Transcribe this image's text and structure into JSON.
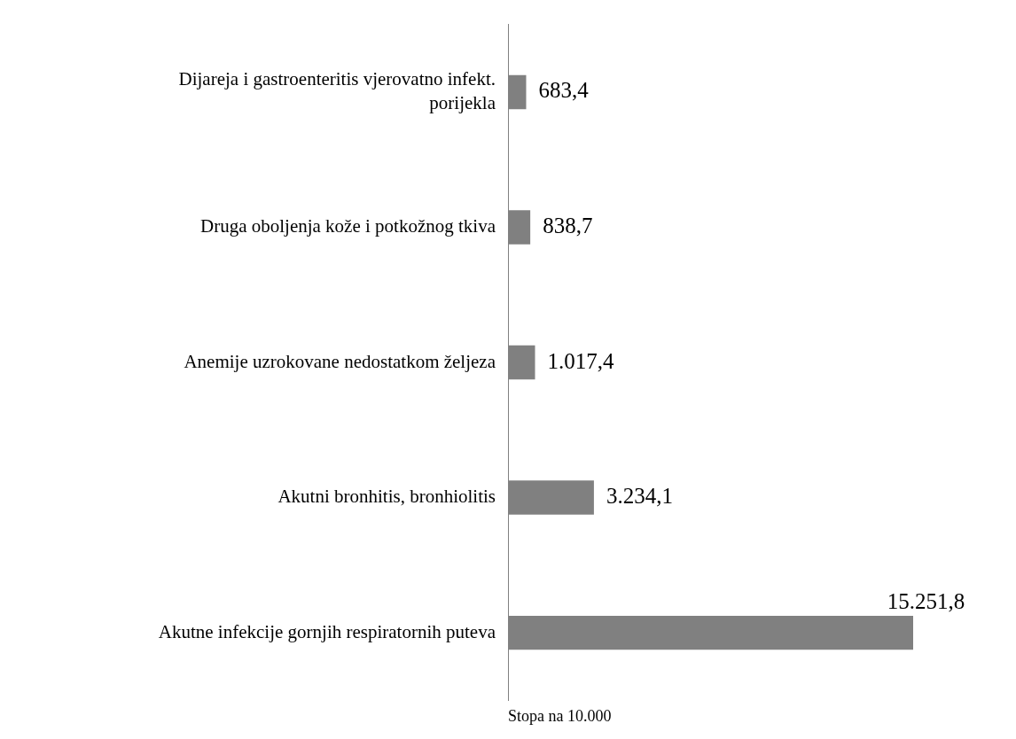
{
  "chart_data": {
    "type": "bar",
    "orientation": "horizontal",
    "xlabel": "Stopa na 10.000",
    "categories": [
      "Dijareja i gastroenteritis vjerovatno infekt. porijekla",
      "Druga oboljenja kože i potkožnog tkiva",
      "Anemije uzrokovane nedostatkom željeza",
      "Akutni bronhitis, bronhiolitis",
      "Akutne infekcije gornjih respiratornih puteva"
    ],
    "values": [
      683.4,
      838.7,
      1017.4,
      3234.1,
      15251.8
    ],
    "value_labels": [
      "683,4",
      "838,7",
      "1.017,4",
      "3.234,1",
      "15.251,8"
    ],
    "color": "#808080",
    "grid": false,
    "legend": false
  }
}
